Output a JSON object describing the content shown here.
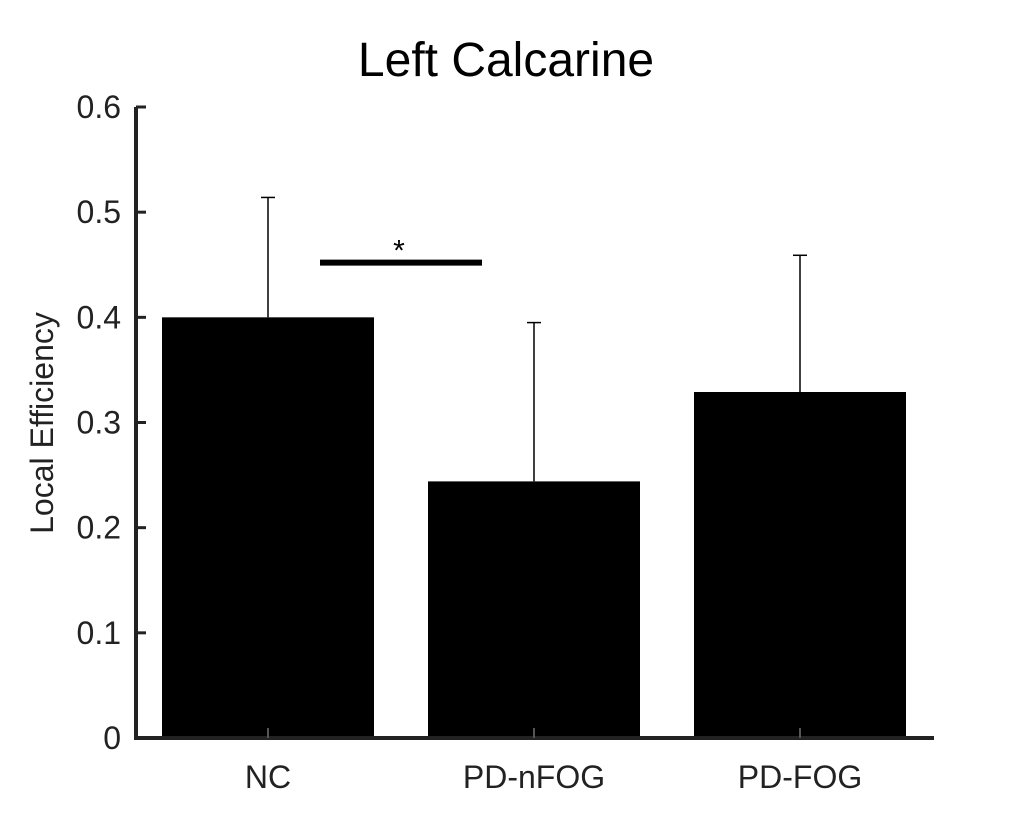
{
  "chart_data": {
    "type": "bar",
    "title": "Left Calcarine",
    "xlabel": "",
    "ylabel": "Local Efficiency",
    "ylim": [
      0,
      0.6
    ],
    "yticks": [
      0,
      0.1,
      0.2,
      0.3,
      0.4,
      0.5,
      0.6
    ],
    "ytick_labels": [
      "0",
      "0.1",
      "0.2",
      "0.3",
      "0.4",
      "0.5",
      "0.6"
    ],
    "categories": [
      "NC",
      "PD-nFOG",
      "PD-FOG"
    ],
    "values": [
      0.4,
      0.244,
      0.329
    ],
    "error_upper": [
      0.514,
      0.395,
      0.459
    ],
    "bar_color": "#000000",
    "grid": false,
    "annotations": [
      {
        "text": "*",
        "from_category": 0,
        "to_category": 1,
        "y": 0.452
      }
    ]
  }
}
